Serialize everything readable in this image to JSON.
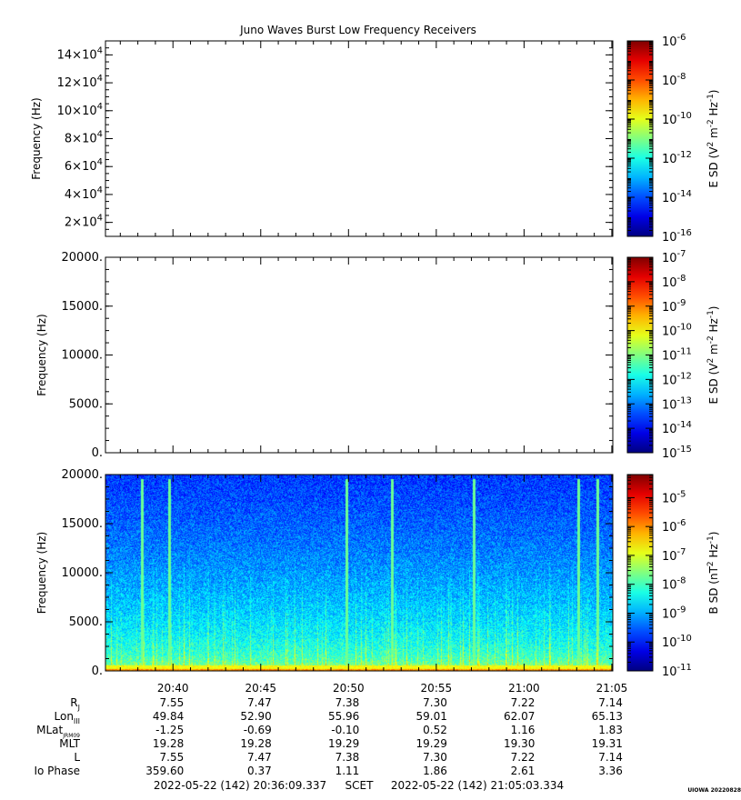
{
  "chart_data": {
    "title": "Juno Waves Burst Low Frequency Receivers",
    "type": "heatmap",
    "time_axis": {
      "ticks": [
        "20:40",
        "20:45",
        "20:50",
        "20:55",
        "21:00",
        "21:05"
      ],
      "start_label": "2022-05-22 (142) 20:36:09.337",
      "frame_label": "SCET",
      "end_label": "2022-05-22 (142) 21:05:03.334"
    },
    "panels": [
      {
        "ylabel": "Frequency (Hz)",
        "ylim": [
          10000,
          150000
        ],
        "y_ticks": [
          {
            "mant": "2×10",
            "exp": "4",
            "value": 20000
          },
          {
            "mant": "4×10",
            "exp": "4",
            "value": 40000
          },
          {
            "mant": "6×10",
            "exp": "4",
            "value": 60000
          },
          {
            "mant": "8×10",
            "exp": "4",
            "value": 80000
          },
          {
            "mant": "10×10",
            "exp": "4",
            "value": 100000
          },
          {
            "mant": "12×10",
            "exp": "4",
            "value": 120000
          },
          {
            "mant": "14×10",
            "exp": "4",
            "value": 140000
          }
        ],
        "data": "none",
        "colorbar": {
          "label_pre": "E SD (V",
          "label_mid": " m",
          "label_mid2": " Hz",
          "label_post": ")",
          "sup1": "2",
          "sup2": "-2",
          "sup3": "-1",
          "log_range": [
            -16,
            -6
          ],
          "major_ticks": [
            {
              "mant": "10",
              "exp": "-6",
              "log": -6
            },
            {
              "mant": "10",
              "exp": "-8",
              "log": -8
            },
            {
              "mant": "10",
              "exp": "-10",
              "log": -10
            },
            {
              "mant": "10",
              "exp": "-12",
              "log": -12
            },
            {
              "mant": "10",
              "exp": "-14",
              "log": -14
            },
            {
              "mant": "10",
              "exp": "-16",
              "log": -16
            }
          ]
        }
      },
      {
        "ylabel": "Frequency (Hz)",
        "ylim": [
          0,
          20000
        ],
        "y_ticks": [
          {
            "label": "0.",
            "value": 0
          },
          {
            "label": "5000.",
            "value": 5000
          },
          {
            "label": "10000.",
            "value": 10000
          },
          {
            "label": "15000.",
            "value": 15000
          },
          {
            "label": "20000.",
            "value": 20000
          }
        ],
        "data": "none",
        "colorbar": {
          "label_pre": "E SD (V",
          "label_mid": " m",
          "label_mid2": " Hz",
          "label_post": ")",
          "sup1": "2",
          "sup2": "-2",
          "sup3": "-1",
          "log_range": [
            -15,
            -7
          ],
          "major_ticks": [
            {
              "mant": "10",
              "exp": "-7",
              "log": -7
            },
            {
              "mant": "10",
              "exp": "-8",
              "log": -8
            },
            {
              "mant": "10",
              "exp": "-9",
              "log": -9
            },
            {
              "mant": "10",
              "exp": "-10",
              "log": -10
            },
            {
              "mant": "10",
              "exp": "-11",
              "log": -11
            },
            {
              "mant": "10",
              "exp": "-12",
              "log": -12
            },
            {
              "mant": "10",
              "exp": "-13",
              "log": -13
            },
            {
              "mant": "10",
              "exp": "-14",
              "log": -14
            },
            {
              "mant": "10",
              "exp": "-15",
              "log": -15
            }
          ]
        }
      },
      {
        "ylabel": "Frequency (Hz)",
        "ylim": [
          0,
          20000
        ],
        "y_ticks": [
          {
            "label": "0.",
            "value": 0
          },
          {
            "label": "5000.",
            "value": 5000
          },
          {
            "label": "10000.",
            "value": 10000
          },
          {
            "label": "15000.",
            "value": 15000
          },
          {
            "label": "20000.",
            "value": 20000
          }
        ],
        "data": "spectrogram",
        "colorbar": {
          "label_pre": "B SD (nT",
          "label_mid": " Hz",
          "label_post": ")",
          "sup1": "2",
          "sup2": "-1",
          "log_range": [
            -11,
            -4.2
          ],
          "major_ticks": [
            {
              "mant": "10",
              "exp": "-5",
              "log": -5
            },
            {
              "mant": "10",
              "exp": "-6",
              "log": -6
            },
            {
              "mant": "10",
              "exp": "-7",
              "log": -7
            },
            {
              "mant": "10",
              "exp": "-8",
              "log": -8
            },
            {
              "mant": "10",
              "exp": "-9",
              "log": -9
            },
            {
              "mant": "10",
              "exp": "-10",
              "log": -10
            },
            {
              "mant": "10",
              "exp": "-11",
              "log": -11
            }
          ]
        }
      }
    ],
    "ephemeris": [
      {
        "label": "R",
        "sub": "J",
        "values": [
          "7.55",
          "7.47",
          "7.38",
          "7.30",
          "7.22",
          "7.14"
        ]
      },
      {
        "label": "Lon",
        "sub": "III",
        "values": [
          "49.84",
          "52.90",
          "55.96",
          "59.01",
          "62.07",
          "65.13"
        ]
      },
      {
        "label": "MLat",
        "sub": "JRM09",
        "values": [
          "-1.25",
          "-0.69",
          "-0.10",
          "0.52",
          "1.16",
          "1.83"
        ]
      },
      {
        "label": "MLT",
        "sub": "",
        "values": [
          "19.28",
          "19.28",
          "19.29",
          "19.29",
          "19.30",
          "19.31"
        ]
      },
      {
        "label": "L",
        "sub": "",
        "values": [
          "7.55",
          "7.47",
          "7.38",
          "7.30",
          "7.22",
          "7.14"
        ]
      },
      {
        "label": "Io Phase",
        "sub": "",
        "values": [
          "359.60",
          "0.37",
          "1.11",
          "1.86",
          "2.61",
          "3.36"
        ]
      }
    ],
    "footer_mark": "UIOWA 20220828"
  }
}
